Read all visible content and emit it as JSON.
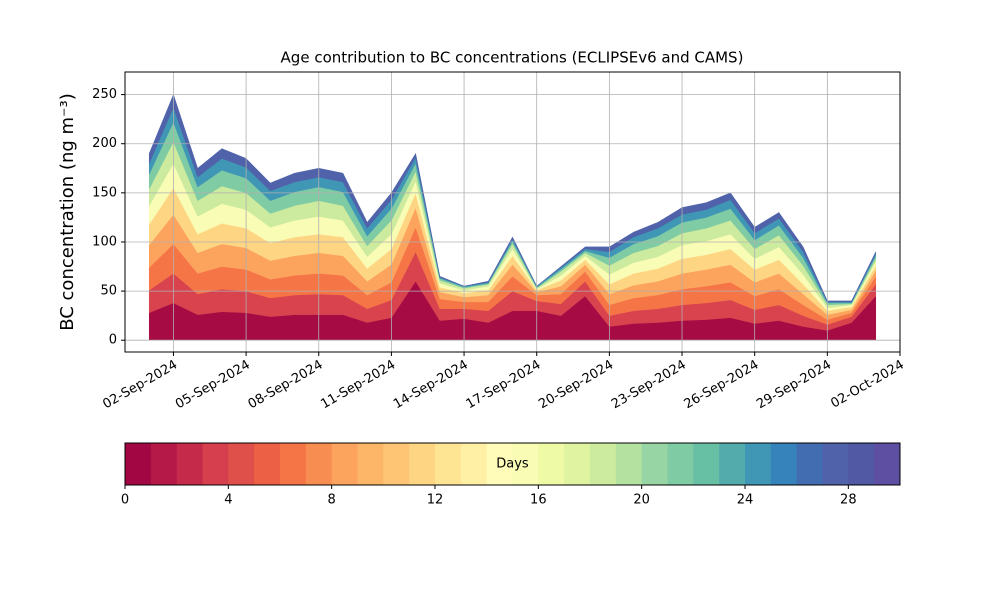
{
  "chart_data": {
    "type": "stacked_area",
    "title": "Age contribution to BC concentrations (ECLIPSEv6 and CAMS)",
    "y_label": "BC concentration (ng m⁻³)",
    "x": [
      "2024-09-01",
      "2024-09-02",
      "2024-09-03",
      "2024-09-04",
      "2024-09-05",
      "2024-09-06",
      "2024-09-07",
      "2024-09-08",
      "2024-09-09",
      "2024-09-10",
      "2024-09-11",
      "2024-09-12",
      "2024-09-13",
      "2024-09-14",
      "2024-09-15",
      "2024-09-16",
      "2024-09-17",
      "2024-09-18",
      "2024-09-19",
      "2024-09-20",
      "2024-09-21",
      "2024-09-22",
      "2024-09-23",
      "2024-09-24",
      "2024-09-25",
      "2024-09-26",
      "2024-09-27",
      "2024-09-28",
      "2024-09-29",
      "2024-09-30",
      "2024-10-01"
    ],
    "series": [
      {
        "color": "#a70b44",
        "values": [
          28,
          38,
          26,
          29,
          28,
          24,
          26,
          26,
          26,
          18,
          23,
          60,
          20,
          22,
          18,
          30,
          30,
          25,
          45,
          14,
          17,
          18,
          20,
          21,
          23,
          17,
          20,
          14,
          10,
          18,
          45
        ]
      },
      {
        "color": "#d8434e",
        "values": [
          23,
          30,
          21,
          23,
          22,
          19,
          20,
          21,
          20,
          14,
          18,
          30,
          12,
          10,
          12,
          20,
          10,
          12,
          15,
          11,
          13,
          14,
          16,
          17,
          18,
          14,
          16,
          11,
          6,
          6,
          12
        ]
      },
      {
        "color": "#f57547",
        "values": [
          23,
          30,
          21,
          23,
          22,
          19,
          20,
          21,
          20,
          14,
          18,
          25,
          10,
          7,
          9,
          15,
          6,
          10,
          10,
          11,
          13,
          14,
          16,
          17,
          18,
          14,
          16,
          11,
          5,
          4,
          8
        ]
      },
      {
        "color": "#fca35d",
        "values": [
          23,
          30,
          21,
          23,
          22,
          19,
          20,
          21,
          20,
          14,
          18,
          20,
          7,
          5,
          7,
          12,
          3,
          8,
          7,
          11,
          13,
          14,
          16,
          17,
          18,
          14,
          16,
          11,
          5,
          3,
          6
        ]
      },
      {
        "color": "#fed683",
        "values": [
          21,
          27,
          19,
          21,
          20,
          18,
          19,
          19,
          19,
          13,
          16,
          15,
          5,
          4,
          5,
          9,
          2,
          6,
          5,
          10,
          12,
          13,
          15,
          15,
          16,
          13,
          14,
          10,
          4,
          3,
          5
        ]
      },
      {
        "color": "#f9fcb5",
        "values": [
          19,
          25,
          18,
          20,
          19,
          16,
          17,
          18,
          17,
          12,
          15,
          12,
          4,
          3,
          4,
          7,
          1,
          5,
          4,
          10,
          11,
          12,
          14,
          14,
          15,
          11,
          13,
          10,
          3,
          2,
          4
        ]
      },
      {
        "color": "#cceb9e",
        "values": [
          17,
          22,
          16,
          18,
          17,
          14,
          15,
          16,
          15,
          11,
          14,
          10,
          3,
          2,
          2,
          5,
          1,
          4,
          3,
          9,
          10,
          11,
          12,
          13,
          14,
          10,
          12,
          9,
          3,
          1,
          3
        ]
      },
      {
        "color": "#7fcba4",
        "values": [
          15,
          20,
          14,
          16,
          15,
          13,
          14,
          14,
          14,
          10,
          12,
          8,
          2,
          1,
          1,
          3,
          1,
          2,
          2,
          8,
          9,
          10,
          11,
          11,
          12,
          9,
          10,
          8,
          2,
          1,
          3
        ]
      },
      {
        "color": "#3f97b5",
        "values": [
          11,
          15,
          10,
          12,
          11,
          10,
          10,
          10,
          10,
          8,
          9,
          6,
          1,
          1,
          1,
          2,
          1,
          2,
          2,
          6,
          7,
          8,
          8,
          8,
          9,
          7,
          7,
          6,
          1,
          1,
          2
        ]
      },
      {
        "color": "#4f62aa",
        "values": [
          10,
          13,
          9,
          10,
          9,
          8,
          9,
          9,
          9,
          6,
          7,
          4,
          1,
          0,
          1,
          2,
          0,
          1,
          2,
          5,
          5,
          6,
          7,
          7,
          7,
          6,
          6,
          5,
          1,
          1,
          2
        ]
      }
    ],
    "xlim": [
      "2024-08-31",
      "2024-10-02"
    ],
    "xticks": [
      {
        "value": "2024-09-02",
        "label": "02-Sep-2024"
      },
      {
        "value": "2024-09-05",
        "label": "05-Sep-2024"
      },
      {
        "value": "2024-09-08",
        "label": "08-Sep-2024"
      },
      {
        "value": "2024-09-11",
        "label": "11-Sep-2024"
      },
      {
        "value": "2024-09-14",
        "label": "14-Sep-2024"
      },
      {
        "value": "2024-09-17",
        "label": "17-Sep-2024"
      },
      {
        "value": "2024-09-20",
        "label": "20-Sep-2024"
      },
      {
        "value": "2024-09-23",
        "label": "23-Sep-2024"
      },
      {
        "value": "2024-09-26",
        "label": "26-Sep-2024"
      },
      {
        "value": "2024-09-29",
        "label": "29-Sep-2024"
      },
      {
        "value": "2024-10-02",
        "label": "02-Oct-2024"
      }
    ],
    "ylim": [
      -12,
      273
    ],
    "yticks": [
      0,
      50,
      100,
      150,
      200,
      250
    ],
    "grid": true,
    "colorbar": {
      "label": "Days",
      "lim": [
        0,
        30
      ],
      "ticks": [
        0,
        4,
        8,
        12,
        16,
        20,
        24,
        28
      ],
      "colors": [
        "#a30743",
        "#b41947",
        "#c52a4a",
        "#d6404e",
        "#e0504a",
        "#ec6146",
        "#f57547",
        "#f88d52",
        "#fca35d",
        "#fdb567",
        "#fdc574",
        "#fed683",
        "#fee593",
        "#fff0a6",
        "#fffbb8",
        "#f9fcb5",
        "#effaa6",
        "#e0f3a0",
        "#cceb9e",
        "#b5e1a0",
        "#98d5a4",
        "#7fcba4",
        "#67bfa4",
        "#53acab",
        "#3f97b5",
        "#3682ba",
        "#436db1",
        "#4f62aa",
        "#5158a4",
        "#5e4fa2"
      ]
    }
  }
}
